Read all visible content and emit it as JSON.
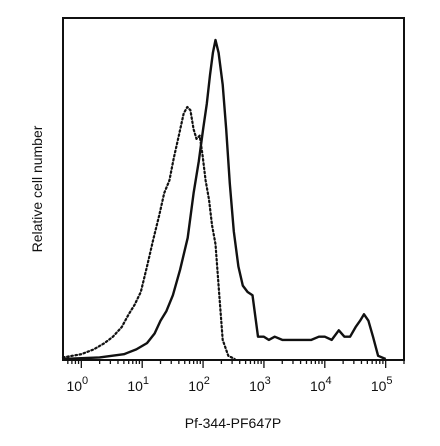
{
  "chart_data": {
    "type": "line",
    "title": "",
    "xlabel": "Pf-344-PF647P",
    "ylabel": "Relative cell number",
    "xscale": "log",
    "xlim": [
      0.5,
      200000
    ],
    "ylim": [
      0,
      100
    ],
    "x_ticks": [
      {
        "value": 1,
        "label": "10",
        "exp": "0"
      },
      {
        "value": 10,
        "label": "10",
        "exp": "1"
      },
      {
        "value": 100,
        "label": "10",
        "exp": "2"
      },
      {
        "value": 1000,
        "label": "10",
        "exp": "3"
      },
      {
        "value": 10000,
        "label": "10",
        "exp": "4"
      },
      {
        "value": 100000,
        "label": "10",
        "exp": "5"
      }
    ],
    "y_ticks_labeled": false,
    "grid": false,
    "legend": "none",
    "series": [
      {
        "style": "dotted",
        "color": "#111111",
        "x": [
          0.5,
          1,
          1.6,
          2.4,
          3.3,
          4.6,
          6,
          7.5,
          9.5,
          12,
          15,
          19,
          23,
          28,
          33,
          40,
          48,
          55,
          62,
          70,
          78,
          88,
          98,
          110,
          125,
          140,
          160,
          185,
          210,
          260,
          330
        ],
        "y": [
          0.5,
          1.5,
          3,
          5,
          7,
          10,
          14,
          17,
          21,
          29,
          37,
          45,
          52,
          56,
          63,
          70,
          77,
          79,
          78,
          72,
          69,
          70,
          64,
          56,
          50,
          42,
          36,
          20,
          6,
          1,
          0
        ]
      },
      {
        "style": "solid",
        "color": "#111111",
        "x": [
          0.5,
          2,
          5,
          8,
          12,
          16,
          20,
          25,
          32,
          42,
          56,
          70,
          85,
          100,
          115,
          130,
          145,
          160,
          180,
          210,
          240,
          275,
          320,
          380,
          450,
          540,
          650,
          800,
          1000,
          1200,
          1500,
          2000,
          2600,
          3500,
          4500,
          6000,
          8000,
          10000,
          13000,
          17000,
          21000,
          26000,
          32000,
          38000,
          44000,
          52000,
          62000,
          75000,
          100000
        ],
        "y": [
          0,
          0.5,
          1.5,
          3,
          5,
          8,
          12,
          15,
          20,
          28,
          38,
          52,
          62,
          72,
          80,
          89,
          96,
          100,
          96,
          86,
          72,
          55,
          40,
          29,
          23,
          21,
          20,
          7,
          7,
          6,
          7,
          6,
          6,
          6,
          6,
          6,
          7,
          7,
          6,
          9,
          7,
          7,
          10,
          12,
          14,
          12,
          7,
          1,
          0
        ]
      }
    ]
  }
}
